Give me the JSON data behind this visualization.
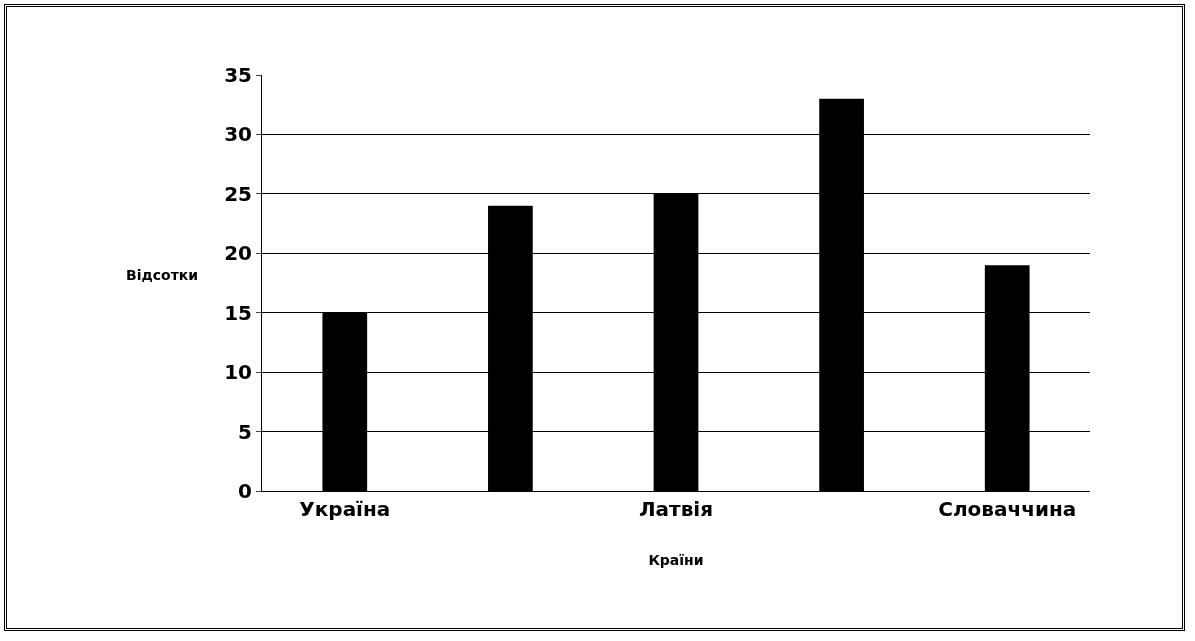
{
  "chart_data": {
    "type": "bar",
    "xlabel": "Країни",
    "ylabel": "Відсотки",
    "categories": [
      "Україна",
      null,
      "Латвія",
      null,
      "Словаччина"
    ],
    "values": [
      15,
      24,
      25,
      33,
      19
    ],
    "color": "#000000",
    "ylim": [
      0,
      35
    ],
    "yticks": [
      0,
      5,
      10,
      15,
      20,
      25,
      30,
      35
    ],
    "grid": "y"
  }
}
